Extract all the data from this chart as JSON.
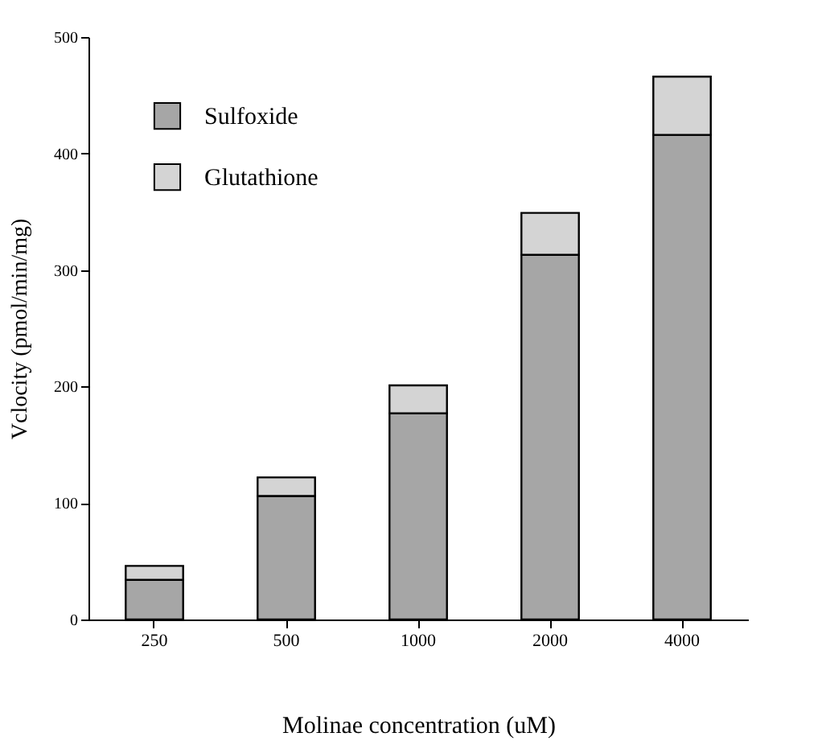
{
  "chart_data": {
    "type": "bar",
    "stacked": true,
    "xlabel": "Molinae concentration (uM)",
    "ylabel": "Vclocity (pmol/min/mg)",
    "categories": [
      "250",
      "500",
      "1000",
      "2000",
      "4000"
    ],
    "series": [
      {
        "name": "Sulfoxide",
        "color": "#a6a6a6",
        "values": [
          34,
          106,
          177,
          313,
          416
        ]
      },
      {
        "name": "Glutathione",
        "color": "#d4d4d4",
        "values": [
          12,
          16,
          24,
          36,
          50
        ]
      }
    ],
    "ylim": [
      0,
      500
    ],
    "yticks": [
      0,
      100,
      200,
      300,
      400,
      500
    ],
    "grid": false,
    "legend": "top left"
  }
}
